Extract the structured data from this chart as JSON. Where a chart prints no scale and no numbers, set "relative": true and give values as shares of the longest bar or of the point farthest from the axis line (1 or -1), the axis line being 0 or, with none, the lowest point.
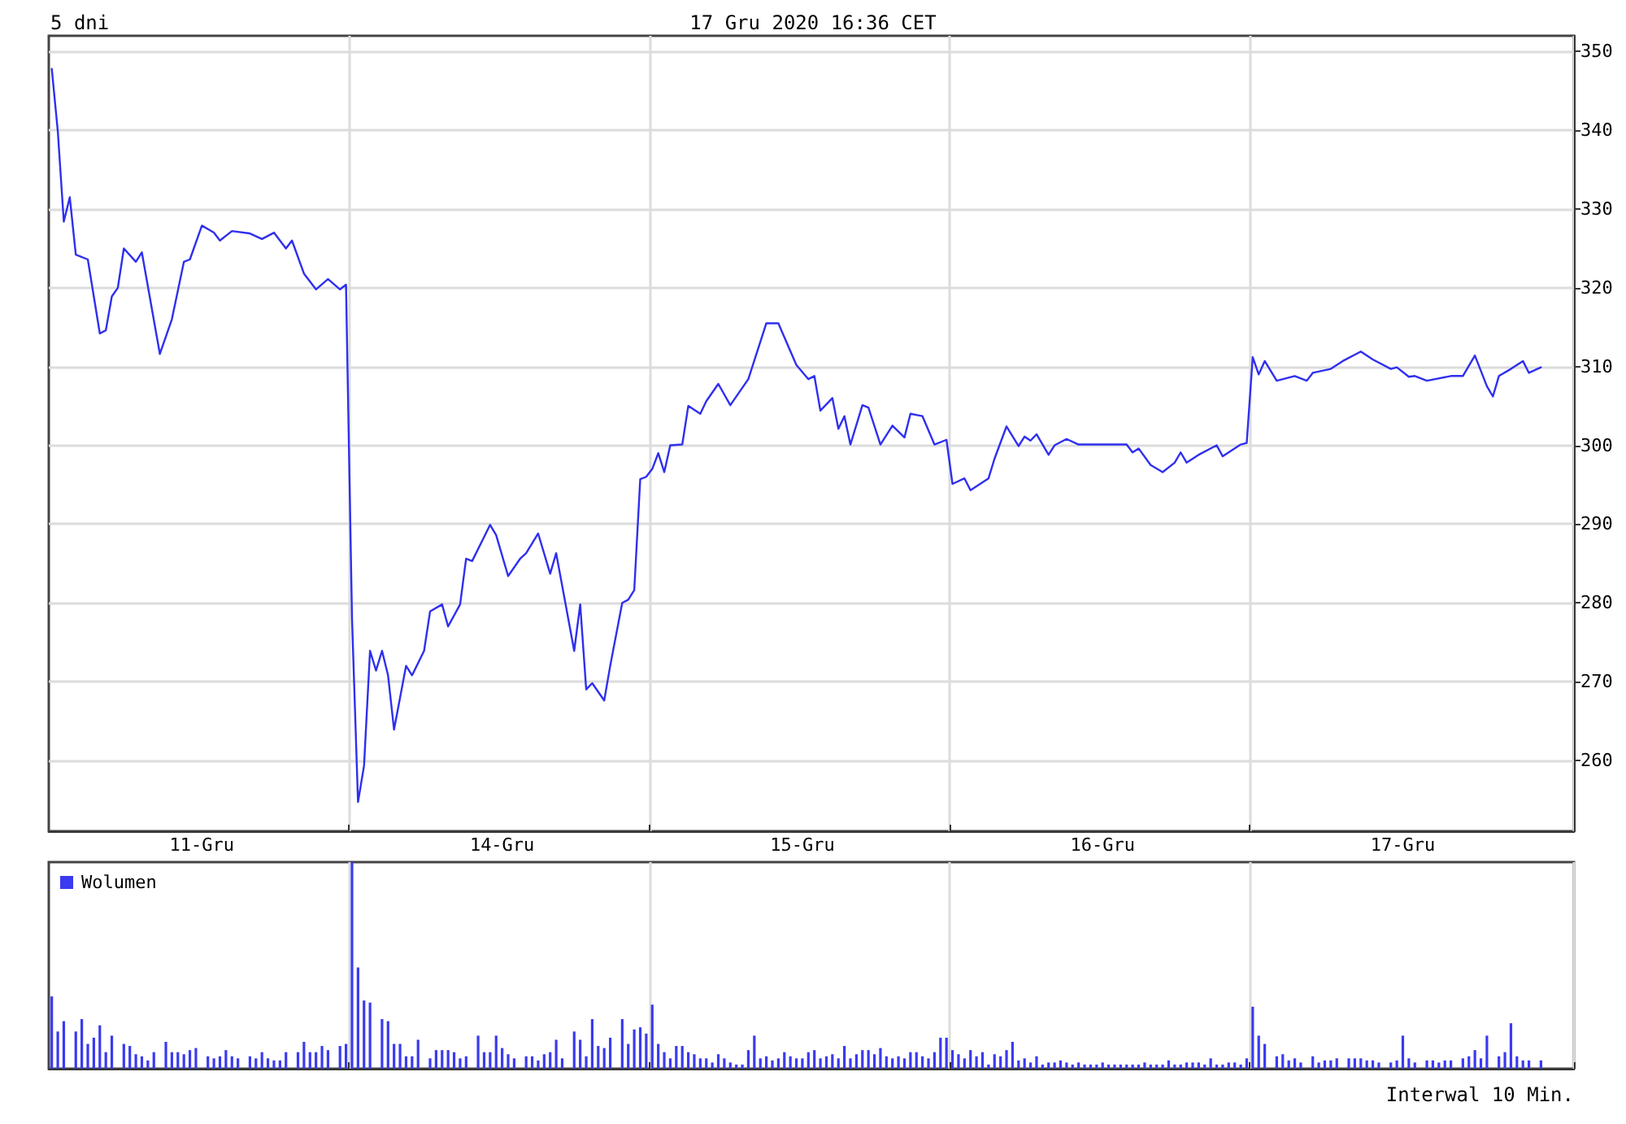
{
  "chart_data": [
    {
      "type": "line",
      "title": "5 dni",
      "subtitle": "17 Gru 2020 16:36 CET",
      "color": "#2f2fef",
      "marker": "none",
      "grid": true,
      "ylim": [
        251,
        352
      ],
      "yticks": [
        260,
        270,
        280,
        290,
        300,
        310,
        320,
        330,
        340,
        350
      ],
      "categories": [
        null,
        null,
        null,
        null,
        null,
        null,
        null,
        null,
        null,
        null,
        null,
        null,
        null,
        null,
        null,
        null,
        null,
        null,
        null,
        null,
        null,
        null,
        null,
        null,
        null,
        "11-Gru",
        null,
        null,
        null,
        null,
        null,
        null,
        null,
        null,
        null,
        null,
        null,
        null,
        null,
        null,
        null,
        null,
        null,
        null,
        null,
        null,
        null,
        null,
        null,
        null,
        null,
        null,
        null,
        null,
        null,
        null,
        null,
        null,
        null,
        null,
        null,
        null,
        null,
        null,
        null,
        null,
        null,
        null,
        null,
        null,
        null,
        null,
        null,
        null,
        null,
        "14-Gru",
        null,
        null,
        null,
        null,
        null,
        null,
        null,
        null,
        null,
        null,
        null,
        null,
        null,
        null,
        null,
        null,
        null,
        null,
        null,
        null,
        null,
        null,
        null,
        null,
        null,
        null,
        null,
        null,
        null,
        null,
        null,
        null,
        null,
        null,
        null,
        null,
        null,
        null,
        null,
        null,
        null,
        null,
        null,
        null,
        null,
        null,
        null,
        null,
        null,
        "15-Gru",
        null,
        null,
        null,
        null,
        null,
        null,
        null,
        null,
        null,
        null,
        null,
        null,
        null,
        null,
        null,
        null,
        null,
        null,
        null,
        null,
        null,
        null,
        null,
        null,
        null,
        null,
        null,
        null,
        null,
        null,
        null,
        null,
        null,
        null,
        null,
        null,
        null,
        null,
        null,
        null,
        null,
        null,
        null,
        null,
        null,
        null,
        null,
        null,
        null,
        "16-Gru",
        null,
        null,
        null,
        null,
        null,
        null,
        null,
        null,
        null,
        null,
        null,
        null,
        null,
        null,
        null,
        null,
        null,
        null,
        null,
        null,
        null,
        null,
        null,
        null,
        null,
        null,
        null,
        null,
        null,
        null,
        null,
        null,
        null,
        null,
        null,
        null,
        null,
        null,
        null,
        null,
        null,
        null,
        null,
        null,
        null,
        null,
        null,
        null,
        null,
        "17-Gru",
        null,
        null,
        null,
        null,
        null,
        null,
        null,
        null,
        null,
        null,
        null,
        null,
        null,
        null,
        null,
        null,
        null,
        null,
        null,
        null,
        null,
        null,
        null,
        null,
        null,
        null,
        null,
        null
      ],
      "values": [
        347.8,
        339.9,
        328.4,
        331.5,
        324.2,
        null,
        323.6,
        null,
        314.2,
        314.6,
        318.9,
        320,
        325,
        null,
        323.3,
        324.5,
        null,
        null,
        311.6,
        null,
        316,
        null,
        323.3,
        323.6,
        null,
        327.9,
        null,
        327,
        326,
        null,
        327.2,
        null,
        null,
        326.9,
        null,
        326.2,
        null,
        327,
        null,
        325,
        326,
        null,
        321.8,
        null,
        319.8,
        null,
        321.1,
        null,
        319.8,
        320.4,
        278,
        254.7,
        259.3,
        273.9,
        271.4,
        273.9,
        270.8,
        263.9,
        null,
        272,
        270.8,
        null,
        273.9,
        278.9,
        null,
        279.8,
        277,
        null,
        279.8,
        285.6,
        285.3,
        null,
        null,
        289.9,
        288.6,
        null,
        283.4,
        null,
        285.6,
        286.3,
        null,
        288.8,
        null,
        283.7,
        286.3,
        null,
        null,
        273.9,
        279.8,
        269,
        269.8,
        null,
        267.6,
        272,
        null,
        280,
        280.4,
        281.6,
        295.7,
        296,
        297,
        299,
        296.6,
        300,
        null,
        300.1,
        305,
        null,
        304,
        305.6,
        null,
        307.8,
        null,
        305.1,
        null,
        null,
        308.4,
        null,
        null,
        315.5,
        null,
        315.5,
        null,
        null,
        310.2,
        null,
        308.4,
        308.8,
        304.4,
        null,
        306,
        302.1,
        303.7,
        300.1,
        null,
        305.1,
        304.8,
        null,
        300.1,
        null,
        302.5,
        null,
        301,
        304,
        null,
        303.7,
        null,
        300.1,
        null,
        300.7,
        295.1,
        null,
        295.8,
        294.3,
        null,
        null,
        295.8,
        298.3,
        null,
        302.4,
        null,
        299.9,
        301.1,
        300.6,
        301.4,
        null,
        298.8,
        300,
        null,
        300.8,
        null,
        300.1,
        null,
        300.1,
        null,
        null,
        null,
        null,
        null,
        300.1,
        299.1,
        299.6,
        null,
        297.5,
        null,
        296.6,
        null,
        297.8,
        299.1,
        297.8,
        null,
        298.8,
        null,
        null,
        300,
        298.6,
        null,
        null,
        300.1,
        300.3,
        311.2,
        309,
        310.7,
        null,
        308.2,
        null,
        null,
        308.8,
        null,
        308.2,
        309.2,
        null,
        null,
        309.7,
        null,
        310.7,
        null,
        null,
        311.9,
        null,
        310.9,
        null,
        null,
        309.7,
        309.9,
        null,
        308.7,
        308.8,
        null,
        308.2,
        null,
        null,
        null,
        308.8,
        null,
        308.8,
        null,
        311.4,
        null,
        307.5,
        306.2,
        308.8,
        null,
        309.7,
        null,
        310.7,
        309.2,
        null,
        309.9,
        null,
        null,
        null,
        null,
        null
      ]
    },
    {
      "type": "bar",
      "relative": true,
      "grid": "x",
      "legend": "top left",
      "annotations": [
        "Interwal 10 Min."
      ],
      "categories": [
        null,
        null,
        null,
        null,
        null,
        null,
        null,
        null,
        null,
        null,
        null,
        null,
        null,
        null,
        null,
        null,
        null,
        null,
        null,
        null,
        null,
        null,
        null,
        null,
        null,
        null,
        null,
        null,
        null,
        null,
        null,
        null,
        null,
        null,
        null,
        null,
        null,
        null,
        null,
        null,
        null,
        null,
        null,
        null,
        null,
        null,
        null,
        null,
        null,
        null,
        null,
        null,
        null,
        null,
        null,
        null,
        null,
        null,
        null,
        null,
        null,
        null,
        null,
        null,
        null,
        null,
        null,
        null,
        null,
        null,
        null,
        null,
        null,
        null,
        null,
        null,
        null,
        null,
        null,
        null,
        null,
        null,
        null,
        null,
        null,
        null,
        null,
        null,
        null,
        null,
        null,
        null,
        null,
        null,
        null,
        null,
        null,
        null,
        null,
        null,
        null,
        null,
        null,
        null,
        null,
        null,
        null,
        null,
        null,
        null,
        null,
        null,
        null,
        null,
        null,
        null,
        null,
        null,
        null,
        null,
        null,
        null,
        null,
        null,
        null,
        null,
        null,
        null,
        null,
        null,
        null,
        null,
        null,
        null,
        null,
        null,
        null,
        null,
        null,
        null,
        null,
        null,
        null,
        null,
        null,
        null,
        null,
        null,
        null,
        null,
        null,
        null,
        null,
        null,
        null,
        null,
        null,
        null,
        null,
        null,
        null,
        null,
        null,
        null,
        null,
        null,
        null,
        null,
        null,
        null,
        null,
        null,
        null,
        null,
        null,
        null,
        null,
        null,
        null,
        null,
        null,
        null,
        null,
        null,
        null,
        null,
        null,
        null,
        null,
        null,
        null,
        null,
        null,
        null,
        null,
        null,
        null,
        null,
        null,
        null,
        null,
        null,
        null,
        null,
        null,
        null,
        null,
        null,
        null,
        null,
        null,
        null,
        null,
        null,
        null,
        null,
        null,
        null,
        null,
        null,
        null,
        null,
        null,
        null,
        null,
        null,
        null,
        null,
        null,
        null,
        null,
        null,
        null,
        null,
        null,
        null,
        null,
        null,
        null,
        null,
        null,
        null,
        null,
        null,
        null,
        null,
        null,
        null,
        null,
        null,
        null,
        null,
        null,
        null
      ],
      "series": [
        {
          "name": "Wolumen",
          "color": "#3a3af0",
          "values": [
            0.35,
            0.18,
            0.23,
            null,
            0.18,
            0.24,
            0.12,
            0.15,
            0.21,
            0.08,
            0.16,
            null,
            0.12,
            0.11,
            0.07,
            0.06,
            0.04,
            0.08,
            null,
            0.13,
            0.08,
            0.08,
            0.07,
            0.09,
            0.1,
            null,
            0.06,
            0.05,
            0.06,
            0.09,
            0.06,
            0.05,
            null,
            0.06,
            0.05,
            0.08,
            0.05,
            0.04,
            0.04,
            0.08,
            null,
            0.08,
            0.13,
            0.08,
            0.08,
            0.11,
            0.09,
            null,
            0.11,
            0.12,
            1,
            0.49,
            0.33,
            0.32,
            null,
            0.24,
            0.23,
            0.12,
            0.12,
            0.06,
            0.06,
            0.14,
            null,
            0.05,
            0.09,
            0.09,
            0.09,
            0.08,
            0.05,
            0.06,
            null,
            0.16,
            0.08,
            0.08,
            0.16,
            0.1,
            0.07,
            0.05,
            null,
            0.06,
            0.06,
            0.04,
            0.07,
            0.08,
            0.14,
            0.05,
            null,
            0.18,
            0.14,
            0.06,
            0.24,
            0.11,
            0.1,
            0.15,
            null,
            0.24,
            0.12,
            0.19,
            0.2,
            0.17,
            0.31,
            0.12,
            0.08,
            0.05,
            0.11,
            0.11,
            0.08,
            0.07,
            0.05,
            0.05,
            0.03,
            0.07,
            0.05,
            0.03,
            0.02,
            0.02,
            0.09,
            0.16,
            0.05,
            0.06,
            0.04,
            0.05,
            0.08,
            0.06,
            0.05,
            0.05,
            0.08,
            0.09,
            0.05,
            0.06,
            0.07,
            0.05,
            0.11,
            0.05,
            0.07,
            0.09,
            0.09,
            0.07,
            0.1,
            0.06,
            0.05,
            0.06,
            0.05,
            0.08,
            0.08,
            0.06,
            0.05,
            0.08,
            0.15,
            0.15,
            0.09,
            0.07,
            0.05,
            0.09,
            0.06,
            0.08,
            0.02,
            0.07,
            0.06,
            0.09,
            0.13,
            0.04,
            0.05,
            0.03,
            0.06,
            0.02,
            0.03,
            0.03,
            0.04,
            0.03,
            0.02,
            0.03,
            0.02,
            0.02,
            0.02,
            0.03,
            0.02,
            0.02,
            0.02,
            0.02,
            0.02,
            0.02,
            0.03,
            0.02,
            0.02,
            0.02,
            0.04,
            0.02,
            0.02,
            0.03,
            0.03,
            0.03,
            0.02,
            0.05,
            0.02,
            0.02,
            0.03,
            0.03,
            0.02,
            0.05,
            0.3,
            0.16,
            0.12,
            null,
            0.06,
            0.07,
            0.04,
            0.05,
            0.03,
            null,
            0.06,
            0.03,
            0.04,
            0.04,
            0.05,
            null,
            0.05,
            0.05,
            0.05,
            0.04,
            0.04,
            0.03,
            null,
            0.03,
            0.04,
            0.16,
            0.05,
            0.03,
            null,
            0.04,
            0.04,
            0.03,
            0.04,
            0.04,
            null,
            0.05,
            0.06,
            0.09,
            0.05,
            0.16,
            null,
            0.06,
            0.08,
            0.22,
            0.06,
            0.04,
            0.04,
            null,
            0.04,
            null,
            null,
            null,
            null,
            null
          ]
        }
      ]
    }
  ]
}
